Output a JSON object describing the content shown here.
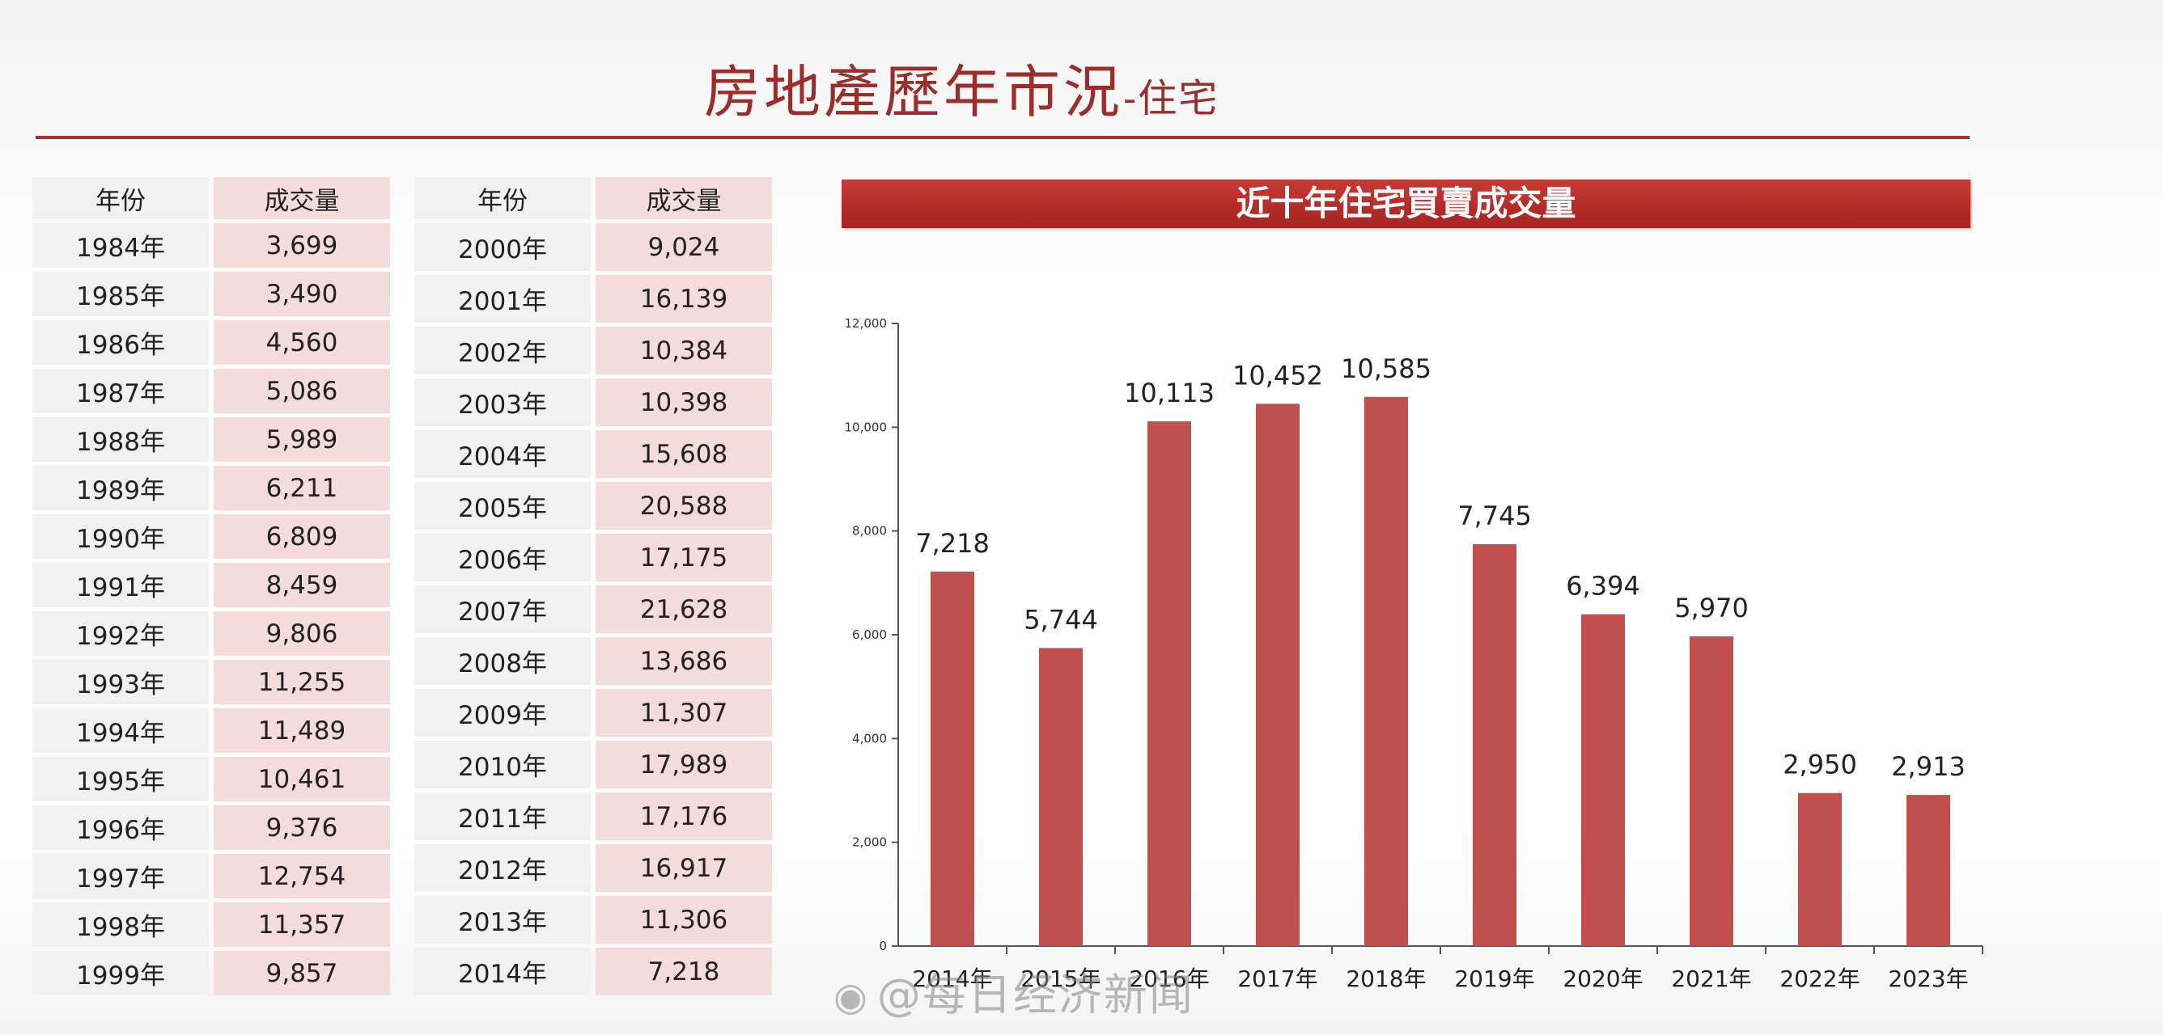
{
  "page": {
    "title_main": "房地產歷年市況",
    "title_sub": "-住宅"
  },
  "table_left": {
    "header_year": "年份",
    "header_volume": "成交量",
    "rows": [
      {
        "year": "1984年",
        "volume": "3,699"
      },
      {
        "year": "1985年",
        "volume": "3,490"
      },
      {
        "year": "1986年",
        "volume": "4,560"
      },
      {
        "year": "1987年",
        "volume": "5,086"
      },
      {
        "year": "1988年",
        "volume": "5,989"
      },
      {
        "year": "1989年",
        "volume": "6,211"
      },
      {
        "year": "1990年",
        "volume": "6,809"
      },
      {
        "year": "1991年",
        "volume": "8,459"
      },
      {
        "year": "1992年",
        "volume": "9,806"
      },
      {
        "year": "1993年",
        "volume": "11,255"
      },
      {
        "year": "1994年",
        "volume": "11,489"
      },
      {
        "year": "1995年",
        "volume": "10,461"
      },
      {
        "year": "1996年",
        "volume": "9,376"
      },
      {
        "year": "1997年",
        "volume": "12,754"
      },
      {
        "year": "1998年",
        "volume": "11,357"
      },
      {
        "year": "1999年",
        "volume": "9,857"
      }
    ]
  },
  "table_right": {
    "header_year": "年份",
    "header_volume": "成交量",
    "rows": [
      {
        "year": "2000年",
        "volume": "9,024"
      },
      {
        "year": "2001年",
        "volume": "16,139"
      },
      {
        "year": "2002年",
        "volume": "10,384"
      },
      {
        "year": "2003年",
        "volume": "10,398"
      },
      {
        "year": "2004年",
        "volume": "15,608"
      },
      {
        "year": "2005年",
        "volume": "20,588"
      },
      {
        "year": "2006年",
        "volume": "17,175"
      },
      {
        "year": "2007年",
        "volume": "21,628"
      },
      {
        "year": "2008年",
        "volume": "13,686"
      },
      {
        "year": "2009年",
        "volume": "11,307"
      },
      {
        "year": "2010年",
        "volume": "17,989"
      },
      {
        "year": "2011年",
        "volume": "17,176"
      },
      {
        "year": "2012年",
        "volume": "16,917"
      },
      {
        "year": "2013年",
        "volume": "11,306"
      },
      {
        "year": "2014年",
        "volume": "7,218"
      }
    ]
  },
  "watermark": {
    "icon": "weibo-icon",
    "text": "@每日经济新闻"
  },
  "chart_data": {
    "type": "bar",
    "title": "近十年住宅買賣成交量",
    "categories": [
      "2014年",
      "2015年",
      "2016年",
      "2017年",
      "2018年",
      "2019年",
      "2020年",
      "2021年",
      "2022年",
      "2023年"
    ],
    "values": [
      7218,
      5744,
      10113,
      10452,
      10585,
      7745,
      6394,
      5970,
      2950,
      2913
    ],
    "value_labels": [
      "7,218",
      "5,744",
      "10,113",
      "10,452",
      "10,585",
      "7,745",
      "6,394",
      "5,970",
      "2,950",
      "2,913"
    ],
    "xlabel": "",
    "ylabel": "",
    "ylim": [
      0,
      12000
    ],
    "y_ticks": [
      0,
      2000,
      4000,
      6000,
      8000,
      10000,
      12000
    ],
    "y_tick_labels": [
      "0",
      "2,000",
      "4,000",
      "6,000",
      "8,000",
      "10,000",
      "12,000"
    ],
    "grid": false,
    "legend": "none",
    "bar_color": "#c0504d"
  }
}
